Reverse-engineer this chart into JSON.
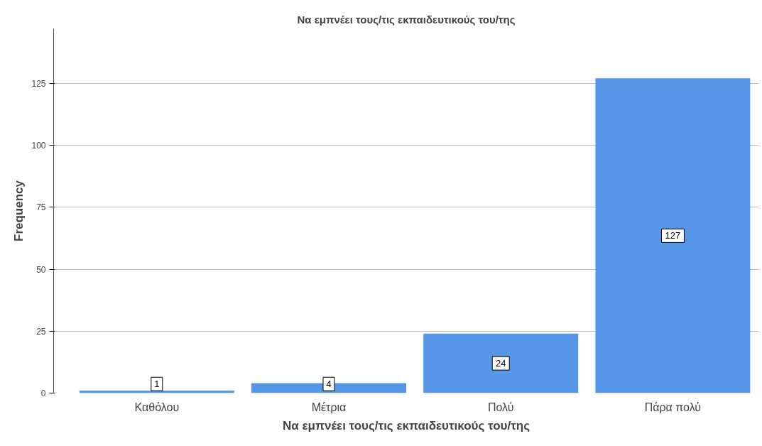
{
  "chart_data": {
    "type": "bar",
    "title": "Να εμπνέει τους/τις εκπαιδευτικούς του/της",
    "xlabel": "Να εμπνέει τους/τις εκπαιδευτικούς του/της",
    "ylabel": "Frequency",
    "categories": [
      "Καθόλου",
      "Μέτρια",
      "Πολύ",
      "Πάρα πολύ"
    ],
    "values": [
      1,
      4,
      24,
      127
    ],
    "color": "#5596e6",
    "ylim": [
      0,
      147
    ],
    "yticks": [
      0,
      25,
      50,
      75,
      100,
      125
    ],
    "grid": "y",
    "data_labels": true
  }
}
